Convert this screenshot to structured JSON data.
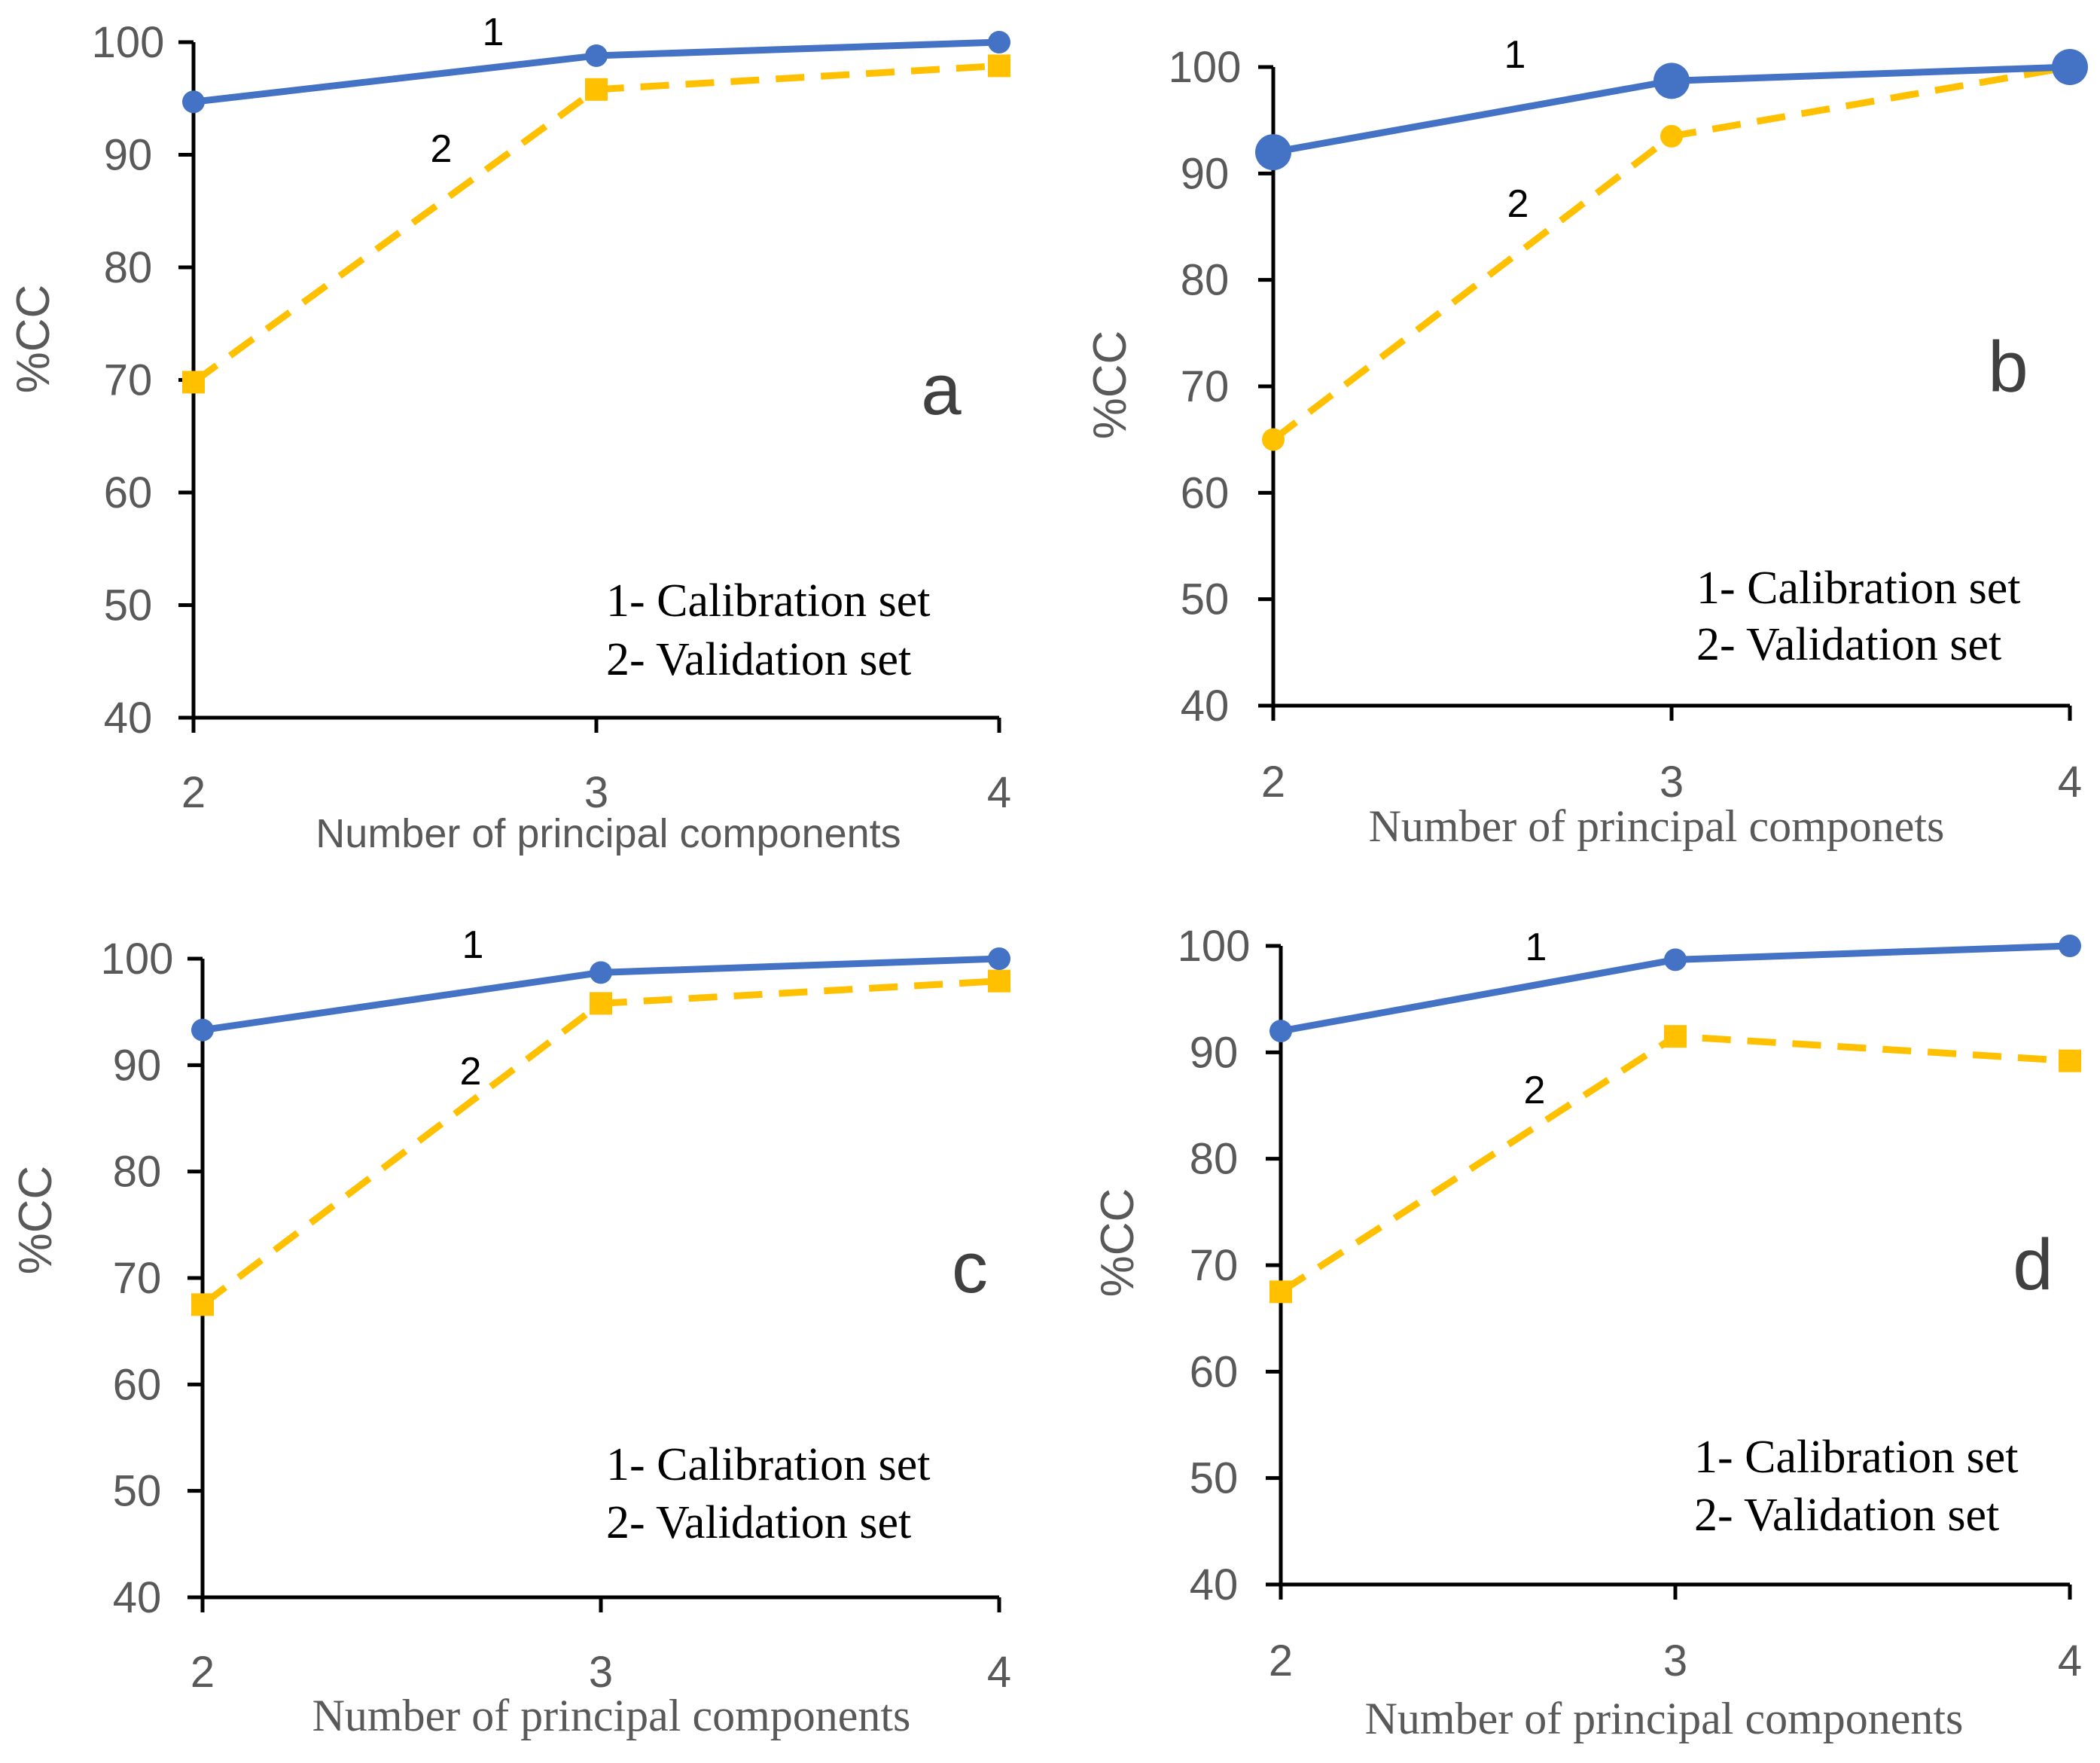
{
  "colors": {
    "calibration": "#4472C4",
    "validation": "#FFC000",
    "axis": "#000000",
    "text": "#595959"
  },
  "chart_data": [
    {
      "type": "line",
      "panel": "a",
      "categories": [
        "2",
        "3",
        "4"
      ],
      "ylabel": "%CC",
      "xlabel": "Number of principal components",
      "ylim": [
        40,
        100
      ],
      "yticks": [
        "40",
        "50",
        "60",
        "70",
        "80",
        "90",
        "100"
      ],
      "legend": [
        "1- Calibration set",
        "2- Validation set"
      ],
      "series": [
        {
          "name": "1",
          "label": "Calibration set",
          "style": "solid",
          "marker": "circle",
          "values": [
            94.7,
            98.8,
            100
          ]
        },
        {
          "name": "2",
          "label": "Validation set",
          "style": "dashed",
          "marker": "square",
          "values": [
            69.8,
            95.8,
            97.9
          ]
        }
      ]
    },
    {
      "type": "line",
      "panel": "b",
      "categories": [
        "2",
        "3",
        "4"
      ],
      "ylabel": "%CC",
      "xlabel": "Number of principal componets",
      "ylim": [
        40,
        100
      ],
      "yticks": [
        "40",
        "50",
        "60",
        "70",
        "80",
        "90",
        "100"
      ],
      "legend": [
        "1- Calibration set",
        "2- Validation set"
      ],
      "series": [
        {
          "name": "1",
          "label": "Calibration set",
          "style": "solid",
          "marker": "circle",
          "values": [
            92.0,
            98.7,
            100
          ]
        },
        {
          "name": "2",
          "label": "Validation set",
          "style": "dashed",
          "marker": "circle",
          "values": [
            65.0,
            93.5,
            100
          ]
        }
      ]
    },
    {
      "type": "line",
      "panel": "c",
      "categories": [
        "2",
        "3",
        "4"
      ],
      "ylabel": "%CC",
      "xlabel": "Number of principal components",
      "ylim": [
        40,
        100
      ],
      "yticks": [
        "40",
        "50",
        "60",
        "70",
        "80",
        "90",
        "100"
      ],
      "legend": [
        "1- Calibration set",
        "2- Validation set"
      ],
      "series": [
        {
          "name": "1",
          "label": "Calibration set",
          "style": "solid",
          "marker": "circle",
          "values": [
            93.3,
            98.7,
            100
          ]
        },
        {
          "name": "2",
          "label": "Validation set",
          "style": "dashed",
          "marker": "square",
          "values": [
            67.5,
            95.8,
            97.9
          ]
        }
      ]
    },
    {
      "type": "line",
      "panel": "d",
      "categories": [
        "2",
        "3",
        "4"
      ],
      "ylabel": "%CC",
      "xlabel": "Number of principal components",
      "ylim": [
        40,
        100
      ],
      "yticks": [
        "40",
        "50",
        "60",
        "70",
        "80",
        "90",
        "100"
      ],
      "legend": [
        "1- Calibration set",
        "2- Validation set"
      ],
      "series": [
        {
          "name": "1",
          "label": "Calibration set",
          "style": "solid",
          "marker": "circle",
          "values": [
            92.0,
            98.7,
            100
          ]
        },
        {
          "name": "2",
          "label": "Validation set",
          "style": "dashed",
          "marker": "square",
          "values": [
            67.5,
            91.5,
            89.2
          ]
        }
      ]
    }
  ]
}
